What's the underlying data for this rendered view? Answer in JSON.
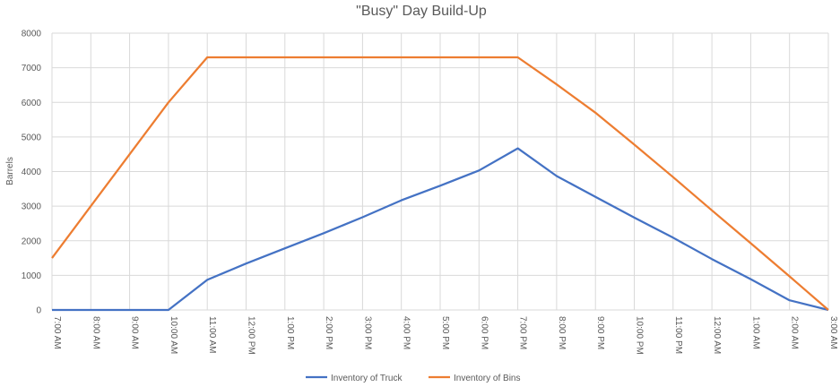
{
  "chart_data": {
    "type": "line",
    "title": "\"Busy\" Day Build-Up",
    "xlabel": "",
    "ylabel": "Barrels",
    "ylim": [
      0,
      8000
    ],
    "yticks": [
      0,
      1000,
      2000,
      3000,
      4000,
      5000,
      6000,
      7000,
      8000
    ],
    "categories": [
      "7:00 AM",
      "8:00 AM",
      "9:00 AM",
      "10:00 AM",
      "11:00 AM",
      "12:00 PM",
      "1:00 PM",
      "2:00 PM",
      "3:00 PM",
      "4:00 PM",
      "5:00 PM",
      "6:00 PM",
      "7:00 PM",
      "8:00 PM",
      "9:00 PM",
      "10:00 PM",
      "11:00 PM",
      "12:00 AM",
      "1:00 AM",
      "2:00 AM",
      "3:00 AM"
    ],
    "grid": true,
    "legend_position": "bottom",
    "series": [
      {
        "name": "Inventory of Truck",
        "color": "#4472c4",
        "values": [
          0,
          0,
          0,
          0,
          870,
          1340,
          1780,
          2220,
          2680,
          3170,
          3590,
          4030,
          4670,
          3870,
          3270,
          2670,
          2090,
          1470,
          890,
          280,
          0
        ]
      },
      {
        "name": "Inventory of Bins",
        "color": "#ed7d31",
        "values": [
          1500,
          3000,
          4500,
          6000,
          7300,
          7300,
          7300,
          7300,
          7300,
          7300,
          7300,
          7300,
          7300,
          6520,
          5700,
          4780,
          3840,
          2880,
          1930,
          970,
          0
        ]
      }
    ]
  }
}
